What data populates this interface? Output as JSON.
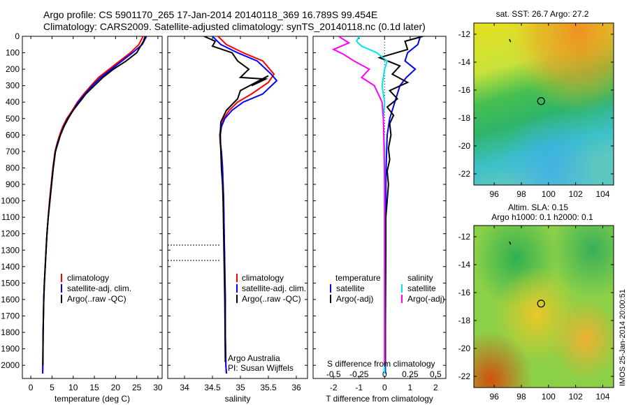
{
  "title": {
    "line1": "Argo profile: CS 5901170_265 17-Jan-2014 20140118_369 16.789S 99.454E",
    "line2": "Climatology: CARS2009. Satellite-adjusted climatology: synTS_20140118.nc (0.1d later)"
  },
  "colors": {
    "clim": "#ff0000",
    "sat": "#0000ff",
    "argo": "#000000",
    "sal_sat": "#00e5ee",
    "sal_argo": "#ff00ff"
  },
  "chart_data": [
    {
      "type": "line",
      "title": "Temperature profile",
      "xlabel": "temperature (deg C)",
      "ylabel": "depth",
      "xlim": [
        -2,
        31
      ],
      "ylim": [
        2080,
        0
      ],
      "xticks": [
        0,
        5,
        10,
        15,
        20,
        25,
        30
      ],
      "yticks": [
        0,
        100,
        200,
        300,
        400,
        500,
        600,
        700,
        800,
        900,
        1000,
        1100,
        1200,
        1300,
        1400,
        1500,
        1600,
        1700,
        1800,
        1900,
        2000
      ],
      "legend": [
        "climatology",
        "satellite-adj. clim.",
        "Argo(..raw -QC)"
      ],
      "series": [
        {
          "name": "climatology",
          "color": "#ff0000",
          "x": [
            26.5,
            25.5,
            23.5,
            21,
            18.5,
            16,
            14.2,
            12.5,
            11,
            9.8,
            8.5,
            7.5,
            6.8,
            6.2,
            5.7,
            5.2,
            4.8,
            4.4,
            4.1,
            3.8,
            3.6,
            3.4,
            3.2,
            3.05,
            2.9,
            2.8
          ],
          "y": [
            0,
            50,
            100,
            150,
            200,
            250,
            300,
            350,
            400,
            450,
            500,
            550,
            600,
            650,
            700,
            800,
            900,
            1000,
            1100,
            1200,
            1300,
            1400,
            1500,
            1600,
            1800,
            2050
          ]
        },
        {
          "name": "satellite-adj. clim.",
          "color": "#0000ff",
          "x": [
            27.3,
            26.3,
            24,
            21.5,
            19,
            16.5,
            14.5,
            12.8,
            11.2,
            10,
            8.7,
            7.7,
            7,
            6.3,
            5.8,
            5.3,
            4.9,
            4.5,
            4.1,
            3.8,
            3.6,
            3.4,
            3.2,
            3.05,
            2.9,
            2.8
          ],
          "y": [
            0,
            50,
            100,
            150,
            200,
            250,
            300,
            350,
            400,
            450,
            500,
            550,
            600,
            650,
            700,
            800,
            900,
            1000,
            1100,
            1200,
            1300,
            1400,
            1500,
            1600,
            1800,
            2050
          ]
        },
        {
          "name": "Argo(..raw -QC)",
          "color": "#000000",
          "x": [
            27,
            26.6,
            25,
            22.5,
            19.5,
            17,
            15,
            13,
            11.5,
            10,
            8.8,
            7.8,
            7,
            6.4,
            5.8,
            5.3,
            4.9,
            4.5,
            4.1,
            3.8,
            3.6,
            3.4,
            3.2,
            3.05,
            2.9,
            2.85
          ],
          "y": [
            0,
            30,
            100,
            150,
            200,
            250,
            300,
            350,
            400,
            450,
            500,
            550,
            600,
            650,
            700,
            800,
            900,
            1000,
            1100,
            1200,
            1300,
            1400,
            1500,
            1600,
            1800,
            2000
          ]
        }
      ]
    },
    {
      "type": "line",
      "title": "Salinity profile",
      "xlabel": "salinity",
      "xlim": [
        33.7,
        36.2
      ],
      "ylim": [
        2080,
        0
      ],
      "xticks": [
        34,
        34.5,
        35,
        35.5,
        36
      ],
      "legend": [
        "climatology",
        "satellite-adj. clim.",
        "Argo(..raw -QC)"
      ],
      "note": [
        "Argo Australia",
        "PI: Susan Wijffels"
      ],
      "series": [
        {
          "name": "climatology",
          "color": "#ff0000",
          "x": [
            34.6,
            34.75,
            35.05,
            35.4,
            35.6,
            35.5,
            35.2,
            34.95,
            34.8,
            34.7,
            34.65,
            34.63,
            34.64,
            34.66,
            34.68,
            34.69,
            34.7,
            34.71,
            34.72,
            34.73,
            34.73,
            34.74,
            34.75
          ],
          "y": [
            0,
            50,
            100,
            150,
            230,
            280,
            350,
            400,
            450,
            500,
            550,
            600,
            650,
            700,
            800,
            900,
            1000,
            1200,
            1400,
            1600,
            1800,
            2000,
            2050
          ]
        },
        {
          "name": "satellite-adj. clim.",
          "color": "#0000ff",
          "x": [
            34.5,
            34.65,
            34.95,
            35.3,
            35.55,
            35.65,
            35.4,
            35.05,
            34.85,
            34.72,
            34.66,
            34.64,
            34.64,
            34.66,
            34.68,
            34.69,
            34.7,
            34.71,
            34.72,
            34.73,
            34.73,
            34.74,
            34.75
          ],
          "y": [
            0,
            50,
            100,
            150,
            230,
            270,
            350,
            400,
            450,
            500,
            550,
            600,
            650,
            700,
            800,
            900,
            1000,
            1200,
            1400,
            1600,
            1800,
            2000,
            2050
          ]
        },
        {
          "name": "Argo(..raw -QC)",
          "color": "#000000",
          "x": [
            34.35,
            34.55,
            34.5,
            34.85,
            34.95,
            35.15,
            35.0,
            35.45,
            35.2,
            35.5,
            35.0,
            34.95,
            34.75,
            34.65,
            34.64,
            34.65,
            34.66,
            34.68,
            34.69,
            34.7,
            34.71,
            34.72,
            34.73
          ],
          "y": [
            0,
            30,
            60,
            100,
            150,
            200,
            250,
            260,
            300,
            240,
            330,
            380,
            450,
            520,
            600,
            700,
            800,
            900,
            1000,
            1200,
            1400,
            1600,
            1980
          ]
        }
      ]
    },
    {
      "type": "line",
      "title": "Difference from climatology",
      "xlabel": "T difference from climatology",
      "xlabel_top": "S difference from climatology",
      "xlim": [
        -2.8,
        2.4
      ],
      "ylim": [
        2080,
        0
      ],
      "xticks": [
        -2,
        -1,
        0,
        1,
        2
      ],
      "sticks": [
        -0.5,
        -0.25,
        0,
        0.25,
        0.5
      ],
      "legend_temperature": {
        "title": "temperature",
        "items": [
          "satellite",
          "Argo(-adj)"
        ]
      },
      "legend_salinity": {
        "title": "salinity",
        "items": [
          "satellite",
          "Argo(-adj)"
        ]
      },
      "series": [
        {
          "name": "temperature satellite",
          "color": "#0000ff",
          "x": [
            1.4,
            1.3,
            0.9,
            0.8,
            1.2,
            0.85,
            0.6,
            0.5,
            0.4,
            0.3,
            0.2,
            0.15,
            0.1,
            0.08,
            0.06,
            0.05,
            0.05,
            0.04,
            0.04,
            0.03,
            0.03,
            0.03,
            0.03,
            0.03
          ],
          "y": [
            0,
            50,
            100,
            150,
            200,
            250,
            300,
            350,
            400,
            450,
            500,
            550,
            600,
            700,
            800,
            900,
            1000,
            1100,
            1200,
            1400,
            1600,
            1800,
            1950,
            2050
          ]
        },
        {
          "name": "temperature Argo(-adj)",
          "color": "#000000",
          "x": [
            1.5,
            0.8,
            0.9,
            -0.2,
            0.6,
            0.3,
            0.9,
            0.2,
            0.5,
            0.1,
            0.35,
            0.2,
            0.25,
            0.15,
            0.2,
            0.1,
            0.15,
            0.1,
            0.05,
            0.05,
            0.04,
            0.03,
            0.03
          ],
          "y": [
            0,
            30,
            80,
            130,
            180,
            230,
            280,
            330,
            380,
            430,
            480,
            530,
            600,
            680,
            750,
            820,
            900,
            1000,
            1100,
            1300,
            1500,
            1800,
            2000
          ]
        },
        {
          "name": "salinity satellite",
          "color": "#00e5ee",
          "x": [
            -1.0,
            -1.1,
            -0.9,
            -0.3,
            0.1,
            0.0,
            -0.1,
            0.0,
            -0.05,
            0,
            0,
            0,
            0,
            0,
            0
          ],
          "y": [
            0,
            30,
            60,
            100,
            150,
            200,
            300,
            400,
            500,
            700,
            900,
            1200,
            1500,
            1800,
            2050
          ]
        },
        {
          "name": "salinity Argo(-adj)",
          "color": "#ff00ff",
          "x": [
            -1.8,
            -1.4,
            -2.0,
            -1.6,
            -1.2,
            -0.6,
            -0.9,
            -0.4,
            -0.1,
            -0.05,
            -0.02,
            0,
            0,
            0,
            0
          ],
          "y": [
            0,
            40,
            80,
            110,
            150,
            200,
            250,
            300,
            400,
            500,
            700,
            900,
            1200,
            1600,
            2000
          ]
        }
      ]
    },
    {
      "type": "heatmap",
      "title": "sat. SST: 26.7 Argo: 27.2",
      "xticks": [
        96,
        98,
        100,
        102,
        104
      ],
      "yticks": [
        -12,
        -14,
        -16,
        -18,
        -20,
        -22
      ],
      "xlim": [
        94.5,
        104.8
      ],
      "ylim": [
        -22.8,
        -11.2
      ],
      "marker": {
        "lon": 99.454,
        "lat": -16.789
      }
    },
    {
      "type": "heatmap",
      "title_line1": "Altim. SLA: 0.15",
      "title_line2": "Argo h1000: 0.1 h2000: 0.1",
      "xticks": [
        96,
        98,
        100,
        102,
        104
      ],
      "yticks": [
        -12,
        -14,
        -16,
        -18,
        -20,
        -22
      ],
      "xlim": [
        94.5,
        104.8
      ],
      "ylim": [
        -22.8,
        -11.2
      ],
      "marker": {
        "lon": 99.454,
        "lat": -16.789
      }
    }
  ],
  "watermark": "IMOS 25-Jan-2014 20:00:51"
}
